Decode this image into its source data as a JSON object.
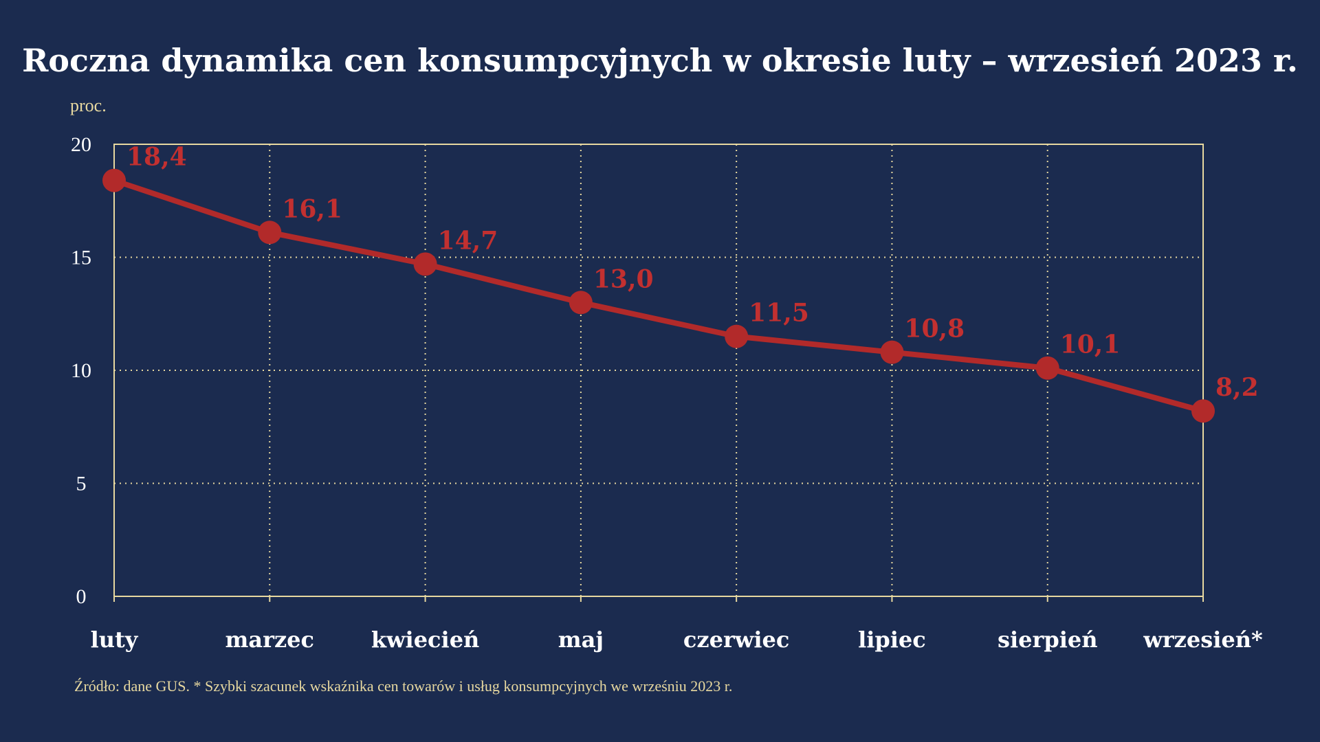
{
  "colors": {
    "background": "#1b2b4f",
    "accent": "#b22a2a",
    "frame": "#e8d9a0",
    "grid": "#e8d9a0",
    "label": "#c23030",
    "text": "#ffffff",
    "note": "#e8d9a0"
  },
  "chart_data": {
    "type": "line",
    "title": "Roczna dynamika cen konsumpcyjnych w okresie luty – wrzesień 2023 r.",
    "ylabel": "proc.",
    "xlabel": "",
    "categories": [
      "luty",
      "marzec",
      "kwiecień",
      "maj",
      "czerwiec",
      "lipiec",
      "sierpień",
      "wrzesień*"
    ],
    "series": [
      {
        "values": [
          18.4,
          16.1,
          14.7,
          13.0,
          11.5,
          10.8,
          10.1,
          8.2
        ],
        "labels": [
          "18,4",
          "16,1",
          "14,7",
          "13,0",
          "11,5",
          "10,8",
          "10,1",
          "8,2"
        ]
      }
    ],
    "ylim": [
      0,
      20
    ],
    "yticks": [
      0,
      5,
      10,
      15,
      20
    ],
    "ytick_labels": [
      "0",
      "5",
      "10",
      "15",
      "20"
    ],
    "grid": "dotted",
    "legend": "none",
    "source": "Źródło: dane GUS. * Szybki szacunek wskaźnika cen towarów i usług konsumpcyjnych we wrześniu 2023 r."
  }
}
